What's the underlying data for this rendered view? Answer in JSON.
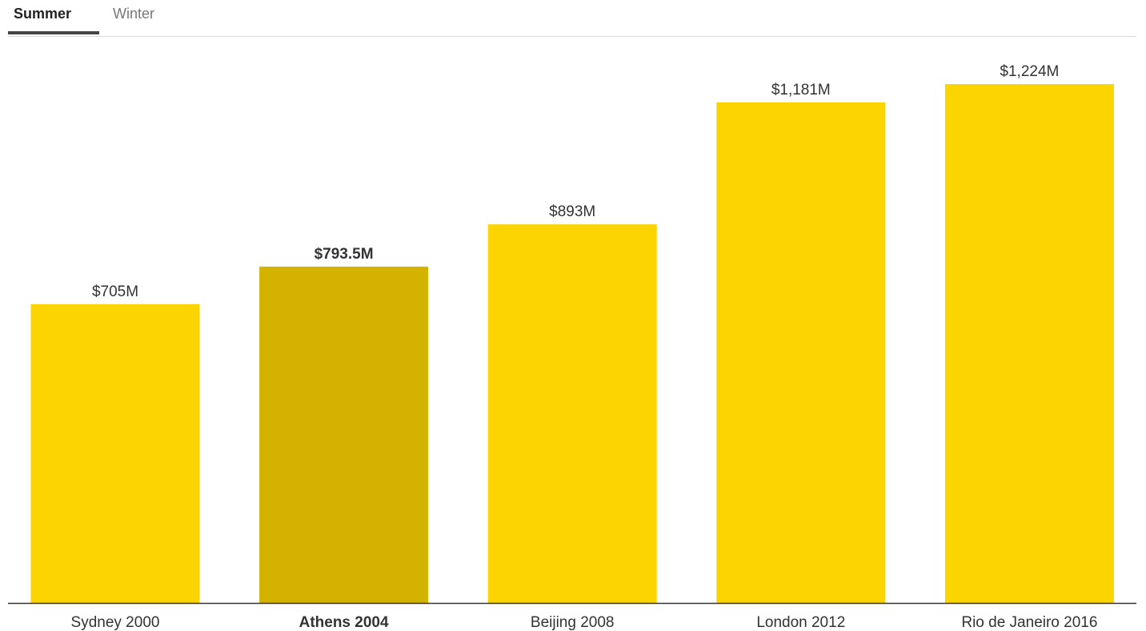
{
  "tabs": {
    "summer_label": "Summer",
    "winter_label": "Winter",
    "active": "summer"
  },
  "colors": {
    "bar": "#fcd400",
    "bar_highlight": "#d4b200",
    "axis": "#333333",
    "label": "#333333"
  },
  "chart_data": {
    "type": "bar",
    "title": "",
    "xlabel": "",
    "ylabel": "",
    "categories": [
      "Sydney 2000",
      "Athens 2004",
      "Beijing 2008",
      "London 2012",
      "Rio de Janeiro 2016"
    ],
    "values": [
      705,
      793.5,
      893,
      1181,
      1224
    ],
    "value_labels": [
      "$705M",
      "$793.5M",
      "$893M",
      "$1,181M",
      "$1,224M"
    ],
    "highlighted_index": 1,
    "ylim": [
      0,
      1224
    ],
    "grid": false,
    "legend": "none"
  }
}
